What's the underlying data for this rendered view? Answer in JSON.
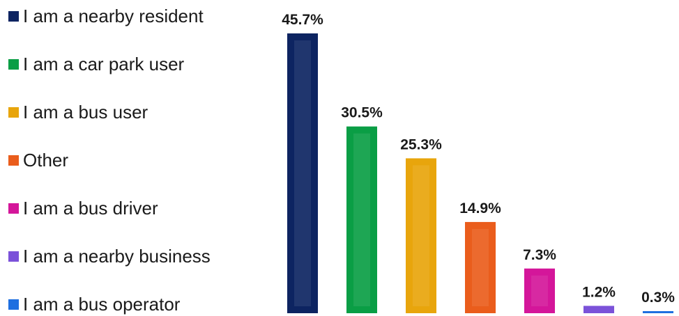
{
  "chart_data": {
    "type": "bar",
    "categories": [
      "I am a nearby resident",
      "I am a car park user",
      "I am a bus user",
      "Other",
      "I am a bus driver",
      "I am a nearby business",
      "I am a bus operator"
    ],
    "values": [
      45.7,
      30.5,
      25.3,
      14.9,
      7.3,
      1.2,
      0.3
    ],
    "data_labels": [
      "45.7%",
      "30.5%",
      "25.3%",
      "14.9%",
      "7.3%",
      "1.2%",
      "0.3%"
    ],
    "colors": [
      "#0d2461",
      "#0a9e45",
      "#e8a50c",
      "#ea5d1c",
      "#d4169a",
      "#7b52d9",
      "#1e6fe0"
    ],
    "title": "",
    "xlabel": "",
    "ylabel": "",
    "ylim": [
      0,
      45.7
    ],
    "grid": false,
    "legend_position": "left"
  }
}
